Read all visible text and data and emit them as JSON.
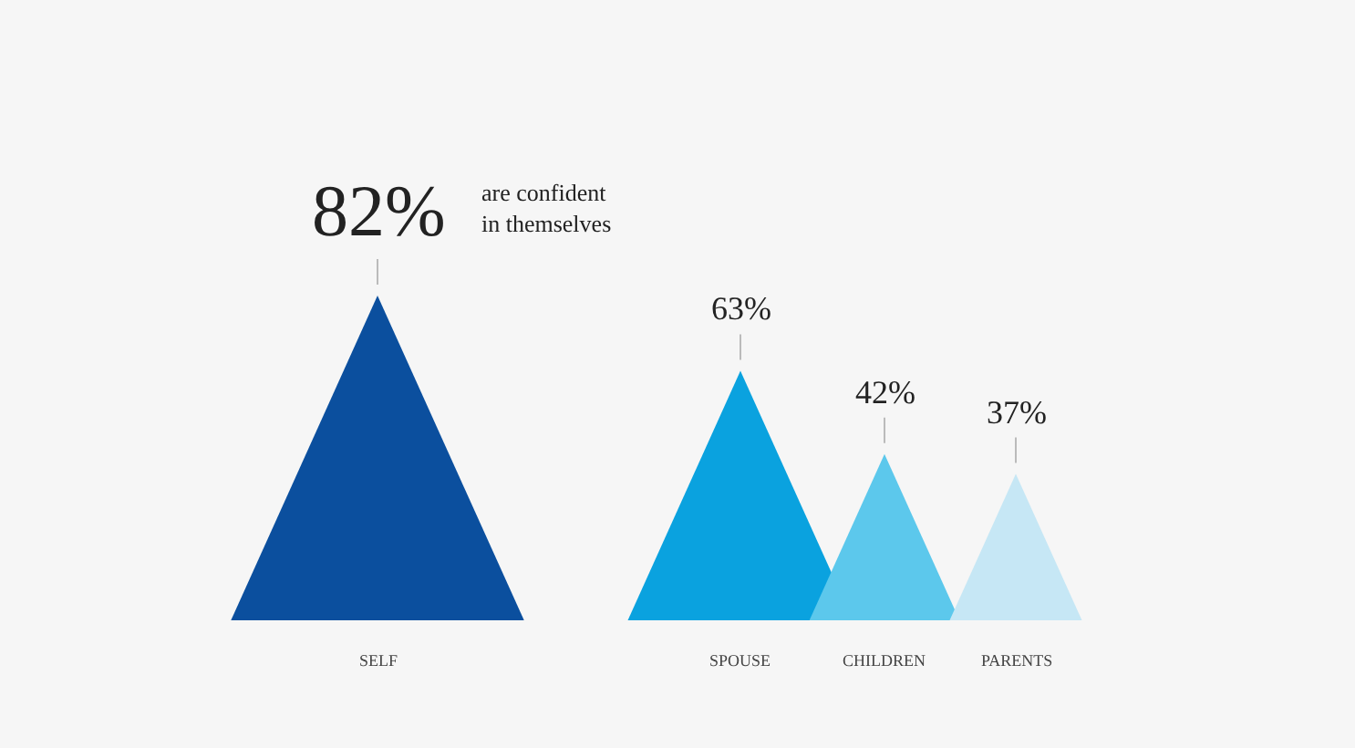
{
  "chart_data": {
    "type": "other",
    "categories": [
      "SELF",
      "SPOUSE",
      "CHILDREN",
      "PARENTS"
    ],
    "values": [
      82,
      63,
      42,
      37
    ],
    "colors": [
      "#0b4f9e",
      "#0aa2df",
      "#5cc8ec",
      "#c6e7f5"
    ],
    "value_labels": [
      "82%",
      "63%",
      "42%",
      "37%"
    ],
    "annotations": [
      "are confident\nin themselves"
    ]
  }
}
